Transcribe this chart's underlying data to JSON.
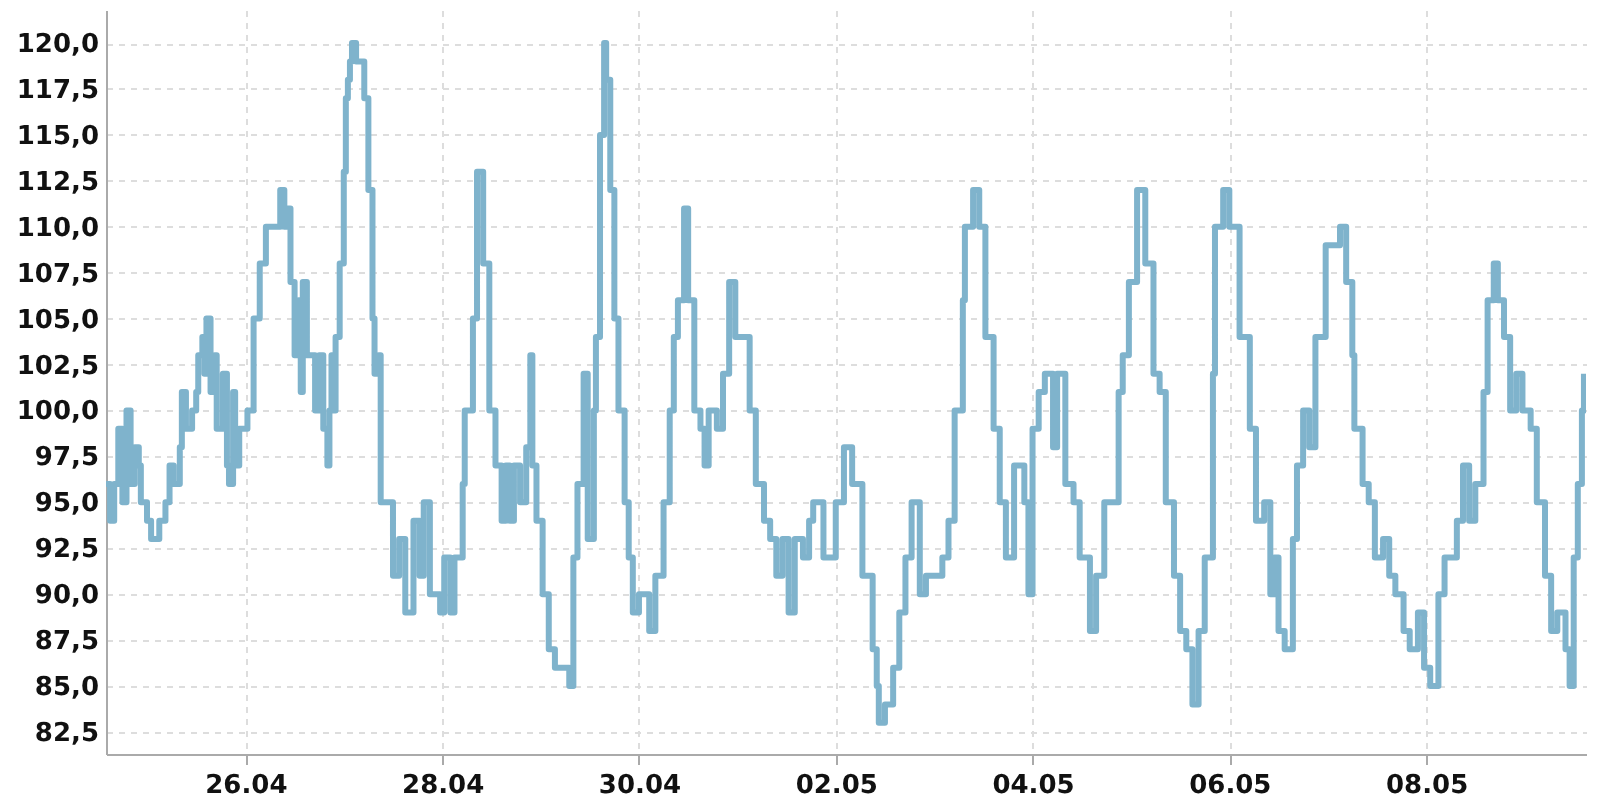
{
  "chart_data": {
    "type": "step",
    "x": [
      "--04-24T14:00",
      "--04-24T15:00",
      "--04-24T16:00",
      "--04-24T17:00",
      "--04-24T18:00",
      "--04-24T19:00",
      "--04-24T20:00",
      "--04-24T21:00",
      "--04-24T22:00",
      "--04-24T22:30",
      "--04-25T00:00",
      "--04-25T01:00",
      "--04-25T02:00",
      "--04-25T03:00",
      "--04-25T04:30",
      "--04-25T05:30",
      "--04-25T06:30",
      "--04-25T08:00",
      "--04-25T08:30",
      "--04-25T09:30",
      "--04-25T11:00",
      "--04-25T12:00",
      "--04-25T12:30",
      "--04-25T13:30",
      "--04-25T14:00",
      "--04-25T14:30",
      "--04-25T15:30",
      "--04-25T16:30",
      "--04-25T17:00",
      "--04-25T18:00",
      "--04-25T18:30",
      "--04-25T19:30",
      "--04-25T20:00",
      "--04-25T21:00",
      "--04-25T21:30",
      "--04-25T22:30",
      "--04-25T23:30",
      "--04-26T00:30",
      "--04-26T02:00",
      "--04-26T03:30",
      "--04-26T05:00",
      "--04-26T07:30",
      "--04-26T08:30",
      "--04-26T09:30",
      "--04-26T10:00",
      "--04-26T11:00",
      "--04-26T12:00",
      "--04-26T13:00",
      "--04-26T13:30",
      "--04-26T14:00",
      "--04-26T15:00",
      "--04-26T16:00",
      "--04-26T17:00",
      "--04-26T18:00",
      "--04-26T19:00",
      "--04-26T20:00",
      "--04-26T20:30",
      "--04-26T21:00",
      "--04-26T21:30",
      "--04-26T22:00",
      "--04-26T23:00",
      "--04-27T00:00",
      "--04-27T00:30",
      "--04-27T01:00",
      "--04-27T01:30",
      "--04-27T02:00",
      "--04-27T03:00",
      "--04-27T05:00",
      "--04-27T06:00",
      "--04-27T07:00",
      "--04-27T07:30",
      "--04-27T08:30",
      "--04-27T09:00",
      "--04-27T10:00",
      "--04-27T12:00",
      "--04-27T13:30",
      "--04-27T15:00",
      "--04-27T17:00",
      "--04-27T18:30",
      "--04-27T19:30",
      "--04-27T21:00",
      "--04-27T23:30",
      "--04-28T00:30",
      "--04-28T02:00",
      "--04-28T03:00",
      "--04-28T05:00",
      "--04-28T05:30",
      "--04-28T07:30",
      "--04-28T08:30",
      "--04-28T10:00",
      "--04-28T11:30",
      "--04-28T13:00",
      "--04-28T14:30",
      "--04-28T15:30",
      "--04-28T16:30",
      "--04-28T17:30",
      "--04-28T19:00",
      "--04-28T20:30",
      "--04-28T21:30",
      "--04-28T22:00",
      "--04-28T23:00",
      "--04-29T00:30",
      "--04-29T02:00",
      "--04-29T03:30",
      "--04-29T06:00",
      "--04-29T07:00",
      "--04-29T08:00",
      "--04-29T09:00",
      "--04-29T10:30",
      "--04-29T11:30",
      "--04-29T13:00",
      "--04-29T13:30",
      "--04-29T14:30",
      "--04-29T15:30",
      "--04-29T16:00",
      "--04-29T17:00",
      "--04-29T18:00",
      "--04-29T19:00",
      "--04-29T20:30",
      "--04-29T21:30",
      "--04-29T22:30",
      "--04-30T00:00",
      "--04-30T02:30",
      "--04-30T04:00",
      "--04-30T06:00",
      "--04-30T07:30",
      "--04-30T08:30",
      "--04-30T09:30",
      "--04-30T11:00",
      "--04-30T12:00",
      "--04-30T13:30",
      "--04-30T15:00",
      "--04-30T16:00",
      "--04-30T17:00",
      "--04-30T19:00",
      "--04-30T20:30",
      "--04-30T22:00",
      "--04-30T23:30",
      "--05-01T01:30",
      "--05-01T03:00",
      "--05-01T04:30",
      "--05-01T06:30",
      "--05-01T08:00",
      "--05-01T09:30",
      "--05-01T11:00",
      "--05-01T12:30",
      "--05-01T14:00",
      "--05-01T16:00",
      "--05-01T17:30",
      "--05-01T18:30",
      "--05-01T21:00",
      "--05-01T22:30",
      "--05-02T00:00",
      "--05-02T02:00",
      "--05-02T04:00",
      "--05-02T06:30",
      "--05-02T09:00",
      "--05-02T10:00",
      "--05-02T10:30",
      "--05-02T12:00",
      "--05-02T14:00",
      "--05-02T15:30",
      "--05-02T17:00",
      "--05-02T18:30",
      "--05-02T20:30",
      "--05-02T22:00",
      "--05-03T00:30",
      "--05-03T02:00",
      "--05-03T03:30",
      "--05-03T05:00",
      "--05-03T07:00",
      "--05-03T07:30",
      "--05-03T09:30",
      "--05-03T11:00",
      "--05-03T12:30",
      "--05-03T14:30",
      "--05-03T16:00",
      "--05-03T17:30",
      "--05-03T19:30",
      "--05-03T22:00",
      "--05-03T23:00",
      "--05-04T00:00",
      "--05-04T01:30",
      "--05-04T03:00",
      "--05-04T05:00",
      "--05-04T06:00",
      "--05-04T08:00",
      "--05-04T10:00",
      "--05-04T11:30",
      "--05-04T14:00",
      "--05-04T15:30",
      "--05-04T17:30",
      "--05-04T19:00",
      "--05-04T21:00",
      "--05-04T22:00",
      "--05-04T23:30",
      "--05-05T01:30",
      "--05-05T03:30",
      "--05-05T05:30",
      "--05-05T07:00",
      "--05-05T08:30",
      "--05-05T10:30",
      "--05-05T12:00",
      "--05-05T13:30",
      "--05-05T15:00",
      "--05-05T16:30",
      "--05-05T18:00",
      "--05-05T20:00",
      "--05-05T20:30",
      "--05-05T22:30",
      "--05-06T00:00",
      "--05-06T02:30",
      "--05-06T05:00",
      "--05-06T06:30",
      "--05-06T08:30",
      "--05-06T10:00",
      "--05-06T11:00",
      "--05-06T12:00",
      "--05-06T13:30",
      "--05-06T15:30",
      "--05-06T16:30",
      "--05-06T18:00",
      "--05-06T19:30",
      "--05-06T21:00",
      "--05-06T23:30",
      "--05-07T01:30",
      "--05-07T03:00",
      "--05-07T04:30",
      "--05-07T06:00",
      "--05-07T06:30",
      "--05-07T08:30",
      "--05-07T10:00",
      "--05-07T11:30",
      "--05-07T13:30",
      "--05-07T15:00",
      "--05-07T16:30",
      "--05-07T18:30",
      "--05-07T20:00",
      "--05-07T22:00",
      "--05-07T23:30",
      "--05-08T01:00",
      "--05-08T03:00",
      "--05-08T04:30",
      "--05-08T06:30",
      "--05-08T07:30",
      "--05-08T09:00",
      "--05-08T10:30",
      "--05-08T12:00",
      "--05-08T14:00",
      "--05-08T15:00",
      "--05-08T16:30",
      "--05-08T17:30",
      "--05-08T19:00",
      "--05-08T20:30",
      "--05-08T22:00",
      "--05-08T23:30",
      "--05-09T01:30",
      "--05-09T03:00",
      "--05-09T05:00",
      "--05-09T06:30",
      "--05-09T08:00",
      "--05-09T10:00",
      "--05-09T11:00",
      "--05-09T12:00",
      "--05-09T13:00",
      "--05-09T14:00",
      "--05-09T14:30"
    ],
    "series": [
      {
        "color": "#7fb3cc",
        "values": [
          96,
          94,
          96,
          99,
          95,
          100,
          96,
          98,
          97,
          95,
          94,
          93,
          93,
          94,
          95,
          97,
          96,
          98,
          101,
          99,
          100,
          101,
          103,
          104,
          102,
          105,
          101,
          103,
          99,
          99,
          102,
          97,
          96,
          101,
          97,
          99,
          99,
          100,
          105,
          108,
          110,
          110,
          112,
          110,
          111,
          107,
          103,
          106,
          101,
          107,
          103,
          103,
          100,
          103,
          99,
          97,
          100,
          103,
          100,
          104,
          108,
          113,
          117,
          118,
          119,
          120,
          119,
          117,
          112,
          105,
          102,
          103,
          95,
          95,
          91,
          93,
          89,
          94,
          91,
          95,
          90,
          89,
          92,
          89,
          92,
          96,
          100,
          105,
          113,
          108,
          100,
          97,
          94,
          97,
          94,
          97,
          95,
          98,
          103,
          97,
          94,
          90,
          87,
          86,
          86,
          85,
          92,
          96,
          102,
          93,
          100,
          104,
          115,
          120,
          118,
          112,
          105,
          100,
          95,
          92,
          89,
          90,
          88,
          91,
          95,
          100,
          104,
          106,
          111,
          106,
          100,
          99,
          97,
          100,
          99,
          102,
          107,
          104,
          104,
          100,
          96,
          94,
          93,
          91,
          93,
          89,
          93,
          92,
          94,
          95,
          92,
          92,
          95,
          98,
          96,
          91,
          87,
          85,
          83,
          84,
          86,
          89,
          92,
          95,
          90,
          91,
          91,
          92,
          94,
          100,
          106,
          110,
          112,
          110,
          104,
          99,
          95,
          92,
          97,
          95,
          90,
          99,
          101,
          102,
          98,
          102,
          96,
          95,
          92,
          88,
          91,
          95,
          95,
          101,
          103,
          107,
          112,
          108,
          102,
          101,
          95,
          91,
          88,
          87,
          84,
          88,
          92,
          102,
          110,
          112,
          110,
          104,
          99,
          94,
          95,
          90,
          92,
          88,
          87,
          93,
          97,
          100,
          98,
          104,
          109,
          109,
          110,
          107,
          103,
          99,
          96,
          95,
          92,
          93,
          91,
          90,
          88,
          87,
          89,
          86,
          85,
          90,
          92,
          92,
          94,
          97,
          94,
          96,
          101,
          106,
          108,
          106,
          104,
          100,
          102,
          100,
          99,
          95,
          91,
          88,
          89,
          87,
          85,
          92,
          96,
          100,
          102
        ]
      }
    ],
    "xlim": [
      "--04-24T14:00",
      "--05-09T15:00"
    ],
    "xticks": [
      {
        "value": "--04-26",
        "label": "26.04"
      },
      {
        "value": "--04-28",
        "label": "28.04"
      },
      {
        "value": "--04-30",
        "label": "30.04"
      },
      {
        "value": "--05-02",
        "label": "02.05"
      },
      {
        "value": "--05-04",
        "label": "04.05"
      },
      {
        "value": "--05-06",
        "label": "06.05"
      },
      {
        "value": "--05-08",
        "label": "08.05"
      }
    ],
    "ylim": [
      81.3,
      121.8
    ],
    "yticks": [
      {
        "value": 82.5,
        "label": "82,5"
      },
      {
        "value": 85,
        "label": "85,0"
      },
      {
        "value": 87.5,
        "label": "87,5"
      },
      {
        "value": 90,
        "label": "90,0"
      },
      {
        "value": 92.5,
        "label": "92,5"
      },
      {
        "value": 95,
        "label": "95,0"
      },
      {
        "value": 97.5,
        "label": "97,5"
      },
      {
        "value": 100,
        "label": "100,0"
      },
      {
        "value": 102.5,
        "label": "102,5"
      },
      {
        "value": 105,
        "label": "105,0"
      },
      {
        "value": 107.5,
        "label": "107,5"
      },
      {
        "value": 110,
        "label": "110,0"
      },
      {
        "value": 112.5,
        "label": "112,5"
      },
      {
        "value": 115,
        "label": "115,0"
      },
      {
        "value": 117.5,
        "label": "117,5"
      },
      {
        "value": 120,
        "label": "120,0"
      }
    ],
    "grid": true
  }
}
